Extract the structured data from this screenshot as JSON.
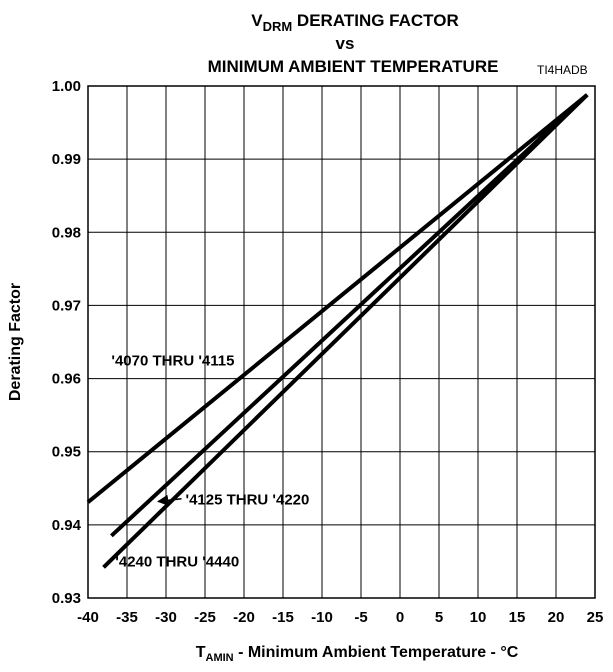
{
  "chart_data": {
    "type": "line",
    "title": {
      "line1_main": "V",
      "line1_sub": "DRM",
      "line1_rest": " DERATING FACTOR",
      "line2": "vs",
      "line3": "MINIMUM AMBIENT TEMPERATURE"
    },
    "figure_code": "TI4HADB",
    "xlabel": {
      "main": "T",
      "sub": "AMIN",
      "rest": " - Minimum Ambient Temperature - °C"
    },
    "ylabel": "Derating Factor",
    "xlim": [
      -40,
      25
    ],
    "ylim": [
      0.93,
      1.0
    ],
    "xticks": [
      "-40",
      "-35",
      "-30",
      "-25",
      "-20",
      "-15",
      "-10",
      "-5",
      "0",
      "5",
      "10",
      "15",
      "20",
      "25"
    ],
    "yticks": [
      "0.93",
      "0.94",
      "0.95",
      "0.96",
      "0.97",
      "0.98",
      "0.99",
      "1.00"
    ],
    "grid": true,
    "series": [
      {
        "name": "'4070 THRU '4115",
        "x": [
          -40,
          24
        ],
        "y": [
          0.9431,
          0.9988
        ]
      },
      {
        "name": "'4125 THRU '4220",
        "x": [
          -37,
          24
        ],
        "y": [
          0.9385,
          0.9988
        ]
      },
      {
        "name": "'4240 THRU '4440",
        "x": [
          -38,
          24
        ],
        "y": [
          0.9342,
          0.9988
        ]
      }
    ],
    "annotations": [
      {
        "text": "'4070 THRU '4115",
        "x": -37,
        "y": 0.9625
      },
      {
        "text": "'4125 THRU '4220",
        "x": -27.5,
        "y": 0.9435,
        "arrow_to": [
          -31,
          0.9432
        ]
      },
      {
        "text": "'4240 THRU '4440",
        "x": -36.5,
        "y": 0.935
      }
    ]
  }
}
